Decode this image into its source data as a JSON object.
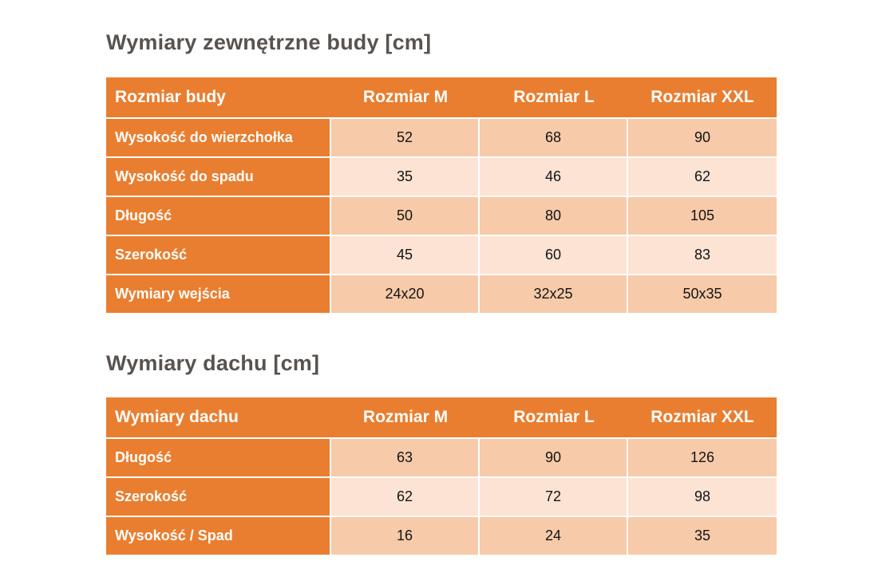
{
  "colors": {
    "orange": "#E97E30",
    "row_dark": "#F7CAA9",
    "row_light": "#FCE3D4",
    "title_color": "#595350",
    "header_text": "#FFFFFF",
    "cell_text": "#141414"
  },
  "tables": [
    {
      "title": "Wymiary zewnętrzne budy [cm]",
      "columns": [
        "Rozmiar budy",
        "Rozmiar M",
        "Rozmiar L",
        "Rozmiar XXL"
      ],
      "rows": [
        {
          "label": "Wysokość do wierzchołka",
          "values": [
            "52",
            "68",
            "90"
          ]
        },
        {
          "label": "Wysokość do spadu",
          "values": [
            "35",
            "46",
            "62"
          ]
        },
        {
          "label": "Długość",
          "values": [
            "50",
            "80",
            "105"
          ]
        },
        {
          "label": "Szerokość",
          "values": [
            "45",
            "60",
            "83"
          ]
        },
        {
          "label": "Wymiary wejścia",
          "values": [
            "24x20",
            "32x25",
            "50x35"
          ]
        }
      ]
    },
    {
      "title": "Wymiary dachu [cm]",
      "columns": [
        "Wymiary dachu",
        "Rozmiar M",
        "Rozmiar L",
        "Rozmiar XXL"
      ],
      "rows": [
        {
          "label": "Długość",
          "values": [
            "63",
            "90",
            "126"
          ]
        },
        {
          "label": "Szerokość",
          "values": [
            "62",
            "72",
            "98"
          ]
        },
        {
          "label": "Wysokość / Spad",
          "values": [
            "16",
            "24",
            "35"
          ]
        }
      ]
    }
  ]
}
